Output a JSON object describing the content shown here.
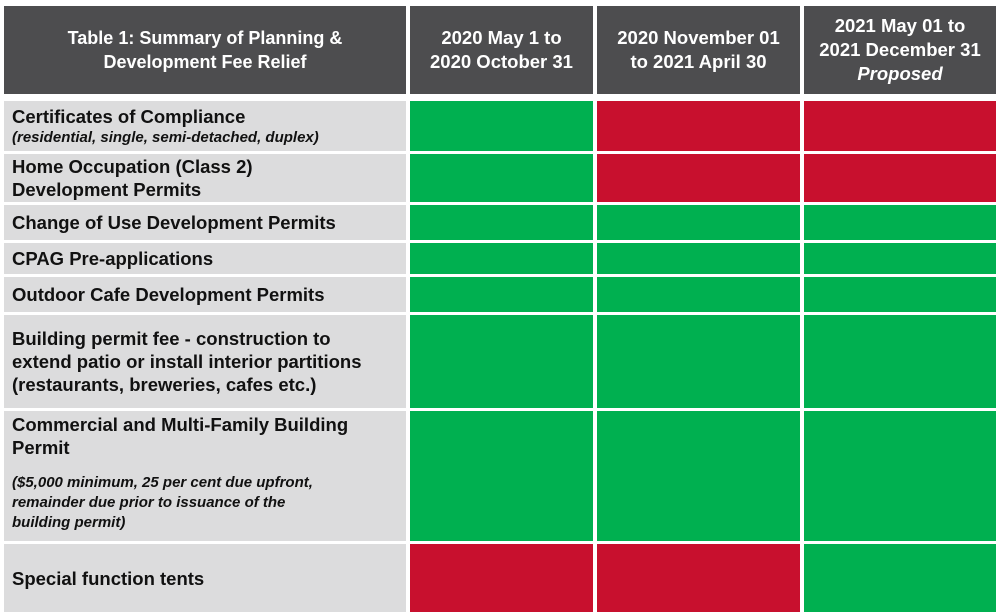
{
  "table": {
    "title": "Table 1: Summary of Planning & Development Fee Relief",
    "title_line1": "Table 1: Summary of Planning &",
    "title_line2": "Development Fee Relief",
    "columns": [
      {
        "line1": "2020 May 1 to",
        "line2": "2020 October 31",
        "line3": ""
      },
      {
        "line1": "2020 November 01",
        "line2": "to 2021 April 30",
        "line3": ""
      },
      {
        "line1": "2021 May 01 to",
        "line2": "2021 December 31",
        "line3": "Proposed"
      }
    ],
    "colors": {
      "header_bg": "#4d4d4f",
      "label_bg": "#dcdcdd",
      "green": "#00b050",
      "red": "#c8102e"
    },
    "rows": [
      {
        "label": "Certificates of Compliance",
        "sub": "(residential, single, semi-detached, duplex)",
        "status": [
          "green",
          "red",
          "red"
        ]
      },
      {
        "label_line1": "Home Occupation (Class 2)",
        "label_line2": "Development Permits",
        "status": [
          "green",
          "red",
          "red"
        ]
      },
      {
        "label": "Change of Use Development Permits",
        "status": [
          "green",
          "green",
          "green"
        ]
      },
      {
        "label": "CPAG Pre-applications",
        "status": [
          "green",
          "green",
          "green"
        ]
      },
      {
        "label": "Outdoor Cafe Development Permits",
        "status": [
          "green",
          "green",
          "green"
        ]
      },
      {
        "label_line1": "Building permit fee - construction to",
        "label_line2": "extend patio or install interior partitions",
        "label_line3": "(restaurants, breweries, cafes etc.)",
        "status": [
          "green",
          "green",
          "green"
        ]
      },
      {
        "label_line1": "Commercial and Multi-Family Building",
        "label_line2": "Permit",
        "sub_line1": "($5,000 minimum, 25 per cent due upfront,",
        "sub_line2": "remainder due prior to issuance of the",
        "sub_line3": "building permit)",
        "status": [
          "green",
          "green",
          "green"
        ]
      },
      {
        "label": "Special function tents",
        "status": [
          "red",
          "red",
          "green"
        ]
      }
    ]
  }
}
